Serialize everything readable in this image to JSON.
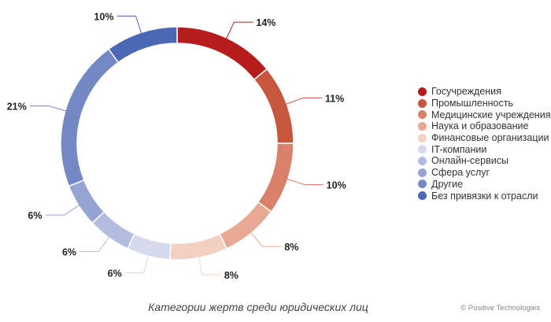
{
  "chart_data": {
    "type": "donut",
    "series": [
      {
        "name": "Госучреждения",
        "value": 14,
        "label": "14%",
        "color": "#b71c1c"
      },
      {
        "name": "Промышленность",
        "value": 11,
        "label": "11%",
        "color": "#c8553d"
      },
      {
        "name": "Медицинские учреждения",
        "value": 10,
        "label": "10%",
        "color": "#d9806a"
      },
      {
        "name": "Наука и образование",
        "value": 8,
        "label": "8%",
        "color": "#e8a994"
      },
      {
        "name": "Финансовые организации",
        "value": 8,
        "label": "8%",
        "color": "#f2d0c2"
      },
      {
        "name": "IT-компании",
        "value": 6,
        "label": "6%",
        "color": "#d4d9ed"
      },
      {
        "name": "Онлайн-сервисы",
        "value": 6,
        "label": "6%",
        "color": "#b3bde0"
      },
      {
        "name": "Сфера услуг",
        "value": 6,
        "label": "6%",
        "color": "#96a4d3"
      },
      {
        "name": "Другие",
        "value": 21,
        "label": "21%",
        "color": "#7488c6"
      },
      {
        "name": "Без привязки к отрасли",
        "value": 10,
        "label": "10%",
        "color": "#4b67b6"
      }
    ],
    "legend_position": "right"
  },
  "caption": "Категории жертв среди юридических лиц",
  "copyright": "© Positive Technologies"
}
